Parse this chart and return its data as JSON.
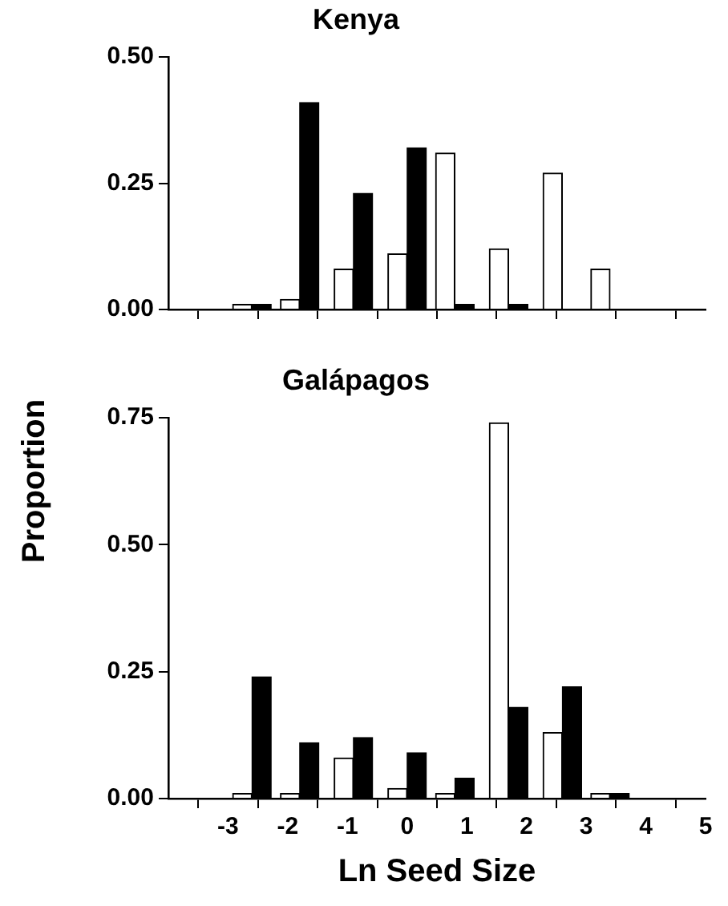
{
  "chart_data": [
    {
      "type": "bar",
      "title": "Kenya",
      "x": [
        -2.6,
        -1.8,
        -0.9,
        0.0,
        0.8,
        1.7,
        2.6,
        3.4
      ],
      "series": [
        {
          "color": "#ffffff",
          "values": [
            0.01,
            0.02,
            0.08,
            0.11,
            0.31,
            0.12,
            0.27,
            0.08
          ]
        },
        {
          "color": "#000000",
          "values": [
            0.01,
            0.41,
            0.23,
            0.32,
            0.01,
            0.01,
            0,
            0
          ]
        }
      ],
      "xlim": [
        -4,
        5
      ],
      "xticks": [
        -3,
        -2,
        -1,
        0,
        1,
        2,
        3,
        4,
        5
      ],
      "ylim": [
        0,
        0.5
      ],
      "yticks": [
        {
          "value": 0,
          "label": "0.00"
        },
        {
          "value": 0.25,
          "label": "0.25"
        },
        {
          "value": 0.5,
          "label": "0.50"
        }
      ],
      "tick_labels": "y",
      "grid": false,
      "legend": false
    },
    {
      "type": "bar",
      "title": "Galápagos",
      "xlabel": "Ln Seed Size",
      "ylabel": "Proportion",
      "x": [
        -2.6,
        -1.8,
        -0.9,
        0.0,
        0.8,
        1.7,
        2.6,
        3.4
      ],
      "series": [
        {
          "color": "#ffffff",
          "values": [
            0.01,
            0.01,
            0.08,
            0.02,
            0.01,
            0.74,
            0.13,
            0.01
          ]
        },
        {
          "color": "#000000",
          "values": [
            0.24,
            0.11,
            0.12,
            0.09,
            0.04,
            0.18,
            0.22,
            0.01
          ]
        }
      ],
      "xlim": [
        -4,
        5
      ],
      "xticks": [
        -3,
        -2,
        -1,
        0,
        1,
        2,
        3,
        4,
        5
      ],
      "ylim": [
        0,
        0.75
      ],
      "yticks": [
        {
          "value": 0,
          "label": "0.00"
        },
        {
          "value": 0.25,
          "label": "0.25"
        },
        {
          "value": 0.5,
          "label": "0.50"
        },
        {
          "value": 0.75,
          "label": "0.75"
        }
      ],
      "grid": false,
      "legend": false
    }
  ]
}
